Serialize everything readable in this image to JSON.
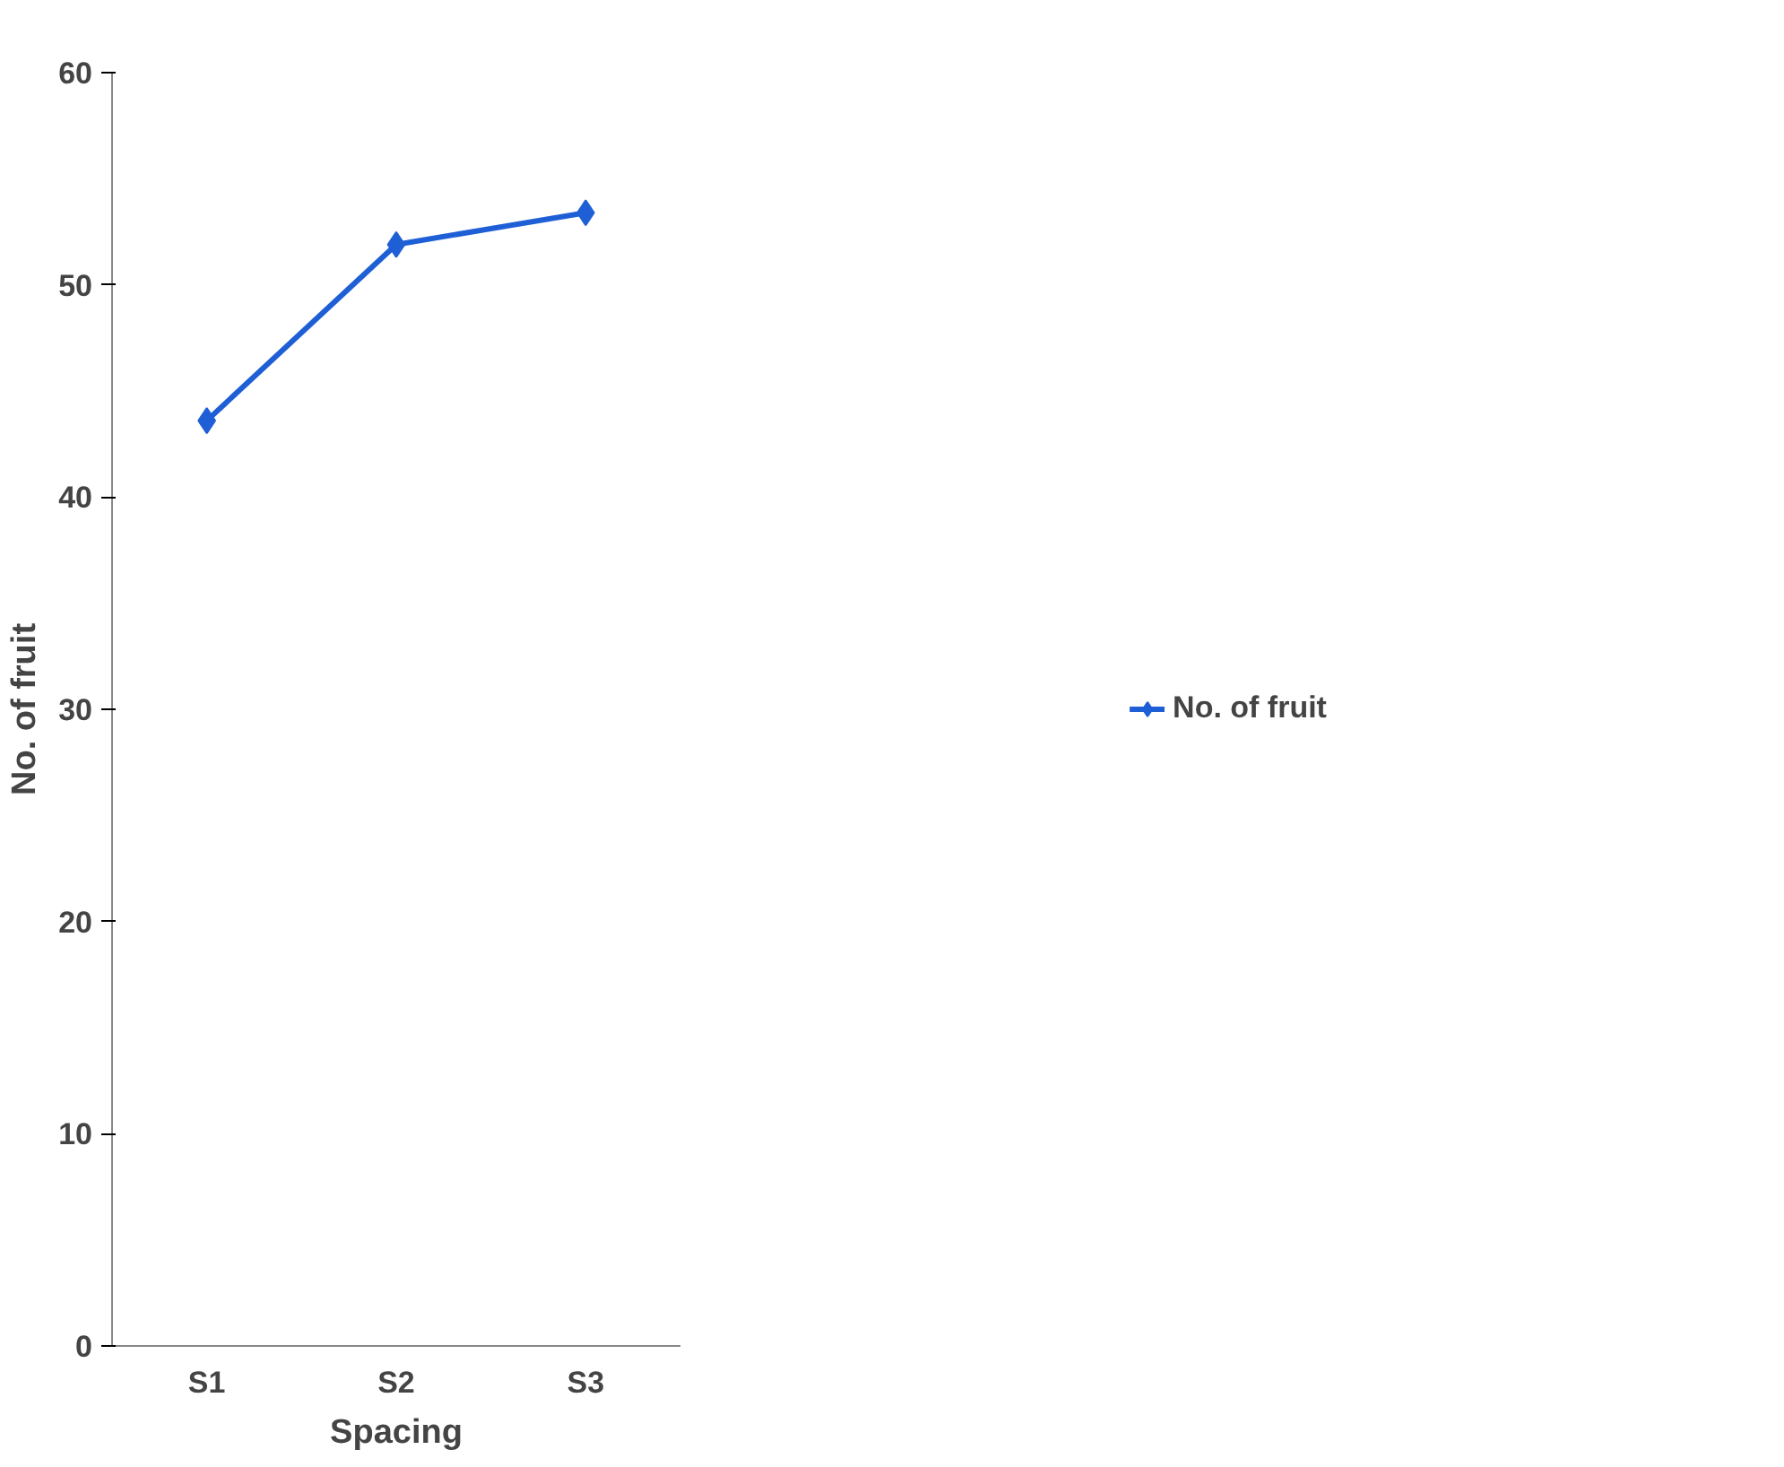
{
  "chart_data": {
    "type": "line",
    "xlabel": "Spacing",
    "ylabel": "No. of fruit",
    "categories": [
      "S1",
      "S2",
      "S3"
    ],
    "series": [
      {
        "name": "No. of fruit",
        "color": "#1f5fd6",
        "values": [
          43.6,
          51.9,
          53.4
        ]
      }
    ],
    "ylim": [
      0,
      60
    ],
    "yticks": [
      0,
      10,
      20,
      30,
      40,
      50,
      60
    ],
    "grid": false,
    "legend": "right",
    "marker": "diamond",
    "line_style": "solid"
  }
}
